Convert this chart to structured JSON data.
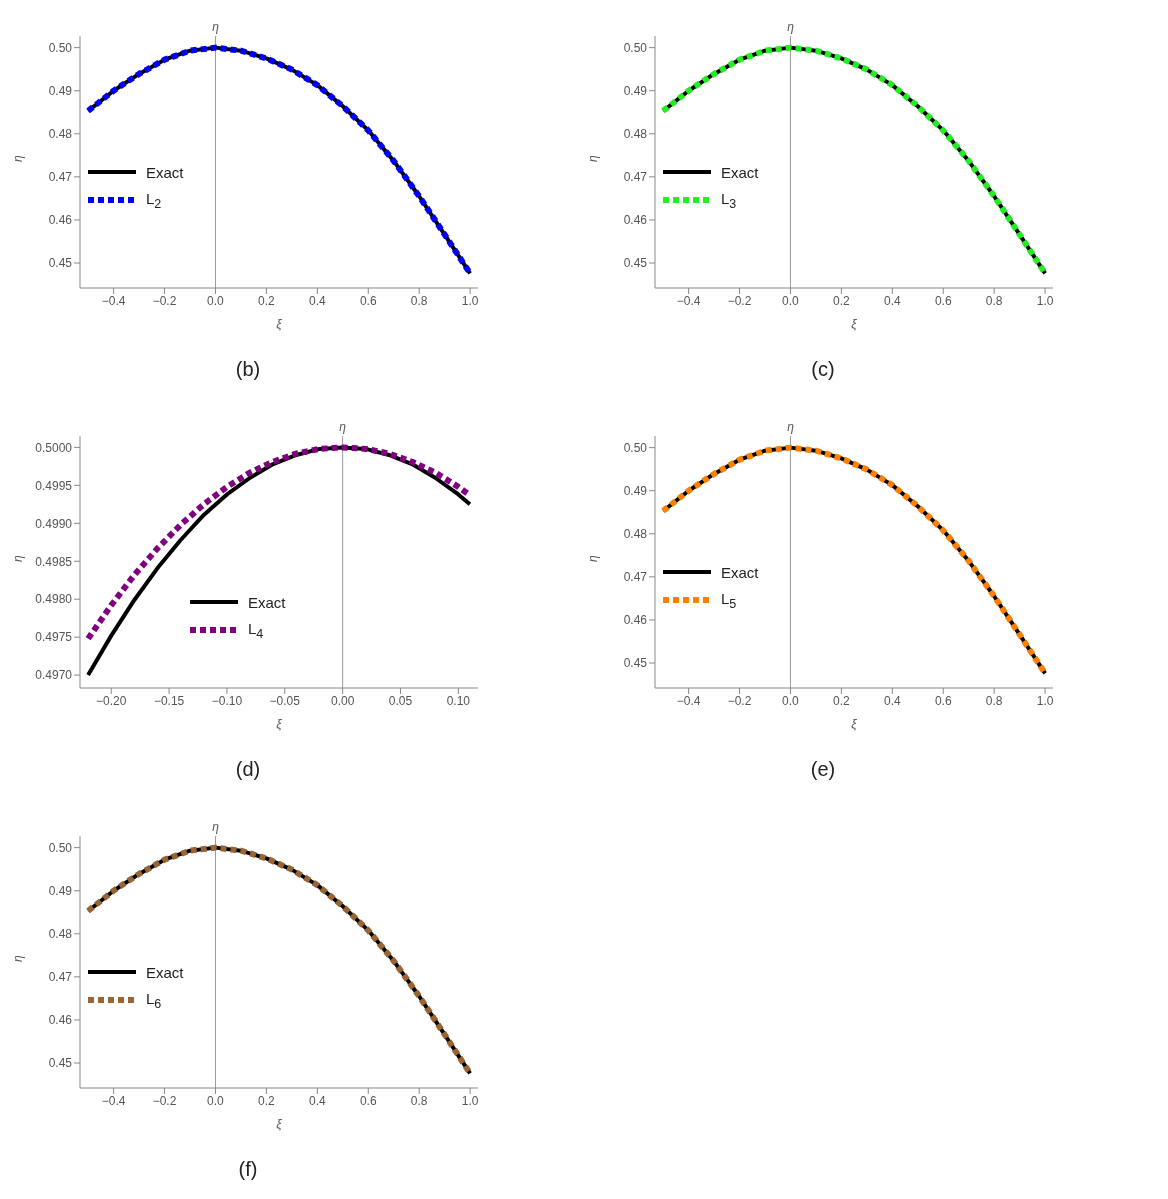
{
  "chart_data": [
    {
      "type": "line",
      "xlabel": "ξ",
      "ylabel": "η",
      "annotations": [
        "(b)"
      ],
      "legend": "left",
      "xlim": [
        -0.532,
        1.031
      ],
      "ylim": [
        0.4442,
        0.5027
      ],
      "xticks": [
        {
          "value": -0.4,
          "label": "−0.4"
        },
        {
          "value": -0.2,
          "label": "−0.2"
        },
        {
          "value": 0,
          "label": "0.0"
        },
        {
          "value": 0.2,
          "label": "0.2"
        },
        {
          "value": 0.4,
          "label": "0.4"
        },
        {
          "value": 0.6,
          "label": "0.6"
        },
        {
          "value": 0.8,
          "label": "0.8"
        },
        {
          "value": 1,
          "label": "1.0"
        }
      ],
      "yticks": [
        {
          "value": 0.45,
          "label": "0.45"
        },
        {
          "value": 0.46,
          "label": "0.46"
        },
        {
          "value": 0.47,
          "label": "0.47"
        },
        {
          "value": 0.48,
          "label": "0.48"
        },
        {
          "value": 0.49,
          "label": "0.49"
        },
        {
          "value": 0.5,
          "label": "0.50"
        }
      ],
      "ref_lines": [
        {
          "axis": "x",
          "value": 0,
          "label": "η",
          "color": "#999999"
        }
      ],
      "x": [
        -0.5,
        -0.4,
        -0.3,
        -0.2,
        -0.1,
        0,
        0.1,
        0.2,
        0.3,
        0.4,
        0.5,
        0.6,
        0.7,
        0.8,
        0.9,
        1.0
      ],
      "series": [
        {
          "name": "Exact",
          "color": "#000000",
          "line_style": "solid",
          "values": [
            0.4853,
            0.49,
            0.4939,
            0.4972,
            0.4993,
            0.5,
            0.4993,
            0.4975,
            0.4949,
            0.4913,
            0.4864,
            0.4808,
            0.4737,
            0.4655,
            0.4566,
            0.4476
          ]
        },
        {
          "name": "L$_{2}$",
          "color": "#0000ff",
          "line_style": "dashed",
          "values": [
            0.4853,
            0.49,
            0.4939,
            0.4972,
            0.4993,
            0.5,
            0.4993,
            0.4975,
            0.4949,
            0.4913,
            0.4864,
            0.4808,
            0.4737,
            0.4655,
            0.4566,
            0.4476
          ]
        }
      ]
    },
    {
      "type": "line",
      "xlabel": "ξ",
      "ylabel": "η",
      "annotations": [
        "(c)"
      ],
      "legend": "left",
      "xlim": [
        -0.532,
        1.031
      ],
      "ylim": [
        0.4442,
        0.5027
      ],
      "xticks": [
        {
          "value": -0.4,
          "label": "−0.4"
        },
        {
          "value": -0.2,
          "label": "−0.2"
        },
        {
          "value": 0,
          "label": "0.0"
        },
        {
          "value": 0.2,
          "label": "0.2"
        },
        {
          "value": 0.4,
          "label": "0.4"
        },
        {
          "value": 0.6,
          "label": "0.6"
        },
        {
          "value": 0.8,
          "label": "0.8"
        },
        {
          "value": 1,
          "label": "1.0"
        }
      ],
      "yticks": [
        {
          "value": 0.45,
          "label": "0.45"
        },
        {
          "value": 0.46,
          "label": "0.46"
        },
        {
          "value": 0.47,
          "label": "0.47"
        },
        {
          "value": 0.48,
          "label": "0.48"
        },
        {
          "value": 0.49,
          "label": "0.49"
        },
        {
          "value": 0.5,
          "label": "0.50"
        }
      ],
      "ref_lines": [
        {
          "axis": "x",
          "value": 0,
          "label": "η",
          "color": "#999999"
        }
      ],
      "x": [
        -0.5,
        -0.4,
        -0.3,
        -0.2,
        -0.1,
        0,
        0.1,
        0.2,
        0.3,
        0.4,
        0.5,
        0.6,
        0.7,
        0.8,
        0.9,
        1.0
      ],
      "series": [
        {
          "name": "Exact",
          "color": "#000000",
          "line_style": "solid",
          "values": [
            0.4853,
            0.49,
            0.4939,
            0.4972,
            0.4993,
            0.5,
            0.4993,
            0.4975,
            0.4949,
            0.4913,
            0.4864,
            0.4808,
            0.4737,
            0.4655,
            0.4566,
            0.4476
          ]
        },
        {
          "name": "L$_{3}$",
          "color": "#22ee22",
          "line_style": "dashed",
          "values": [
            0.4853,
            0.49,
            0.4939,
            0.4972,
            0.4993,
            0.5,
            0.4993,
            0.4975,
            0.4949,
            0.4913,
            0.4864,
            0.4808,
            0.4737,
            0.4655,
            0.4566,
            0.4476
          ]
        }
      ]
    },
    {
      "type": "line",
      "xlabel": "ξ",
      "ylabel": "η",
      "annotations": [
        "(d)"
      ],
      "legend": "center",
      "xlim": [
        -0.227,
        0.117
      ],
      "ylim": [
        0.49683,
        0.50015
      ],
      "xticks": [
        {
          "value": -0.2,
          "label": "−0.20"
        },
        {
          "value": -0.15,
          "label": "−0.15"
        },
        {
          "value": -0.1,
          "label": "−0.10"
        },
        {
          "value": -0.05,
          "label": "−0.05"
        },
        {
          "value": 0,
          "label": "0.00"
        },
        {
          "value": 0.05,
          "label": "0.05"
        },
        {
          "value": 0.1,
          "label": "0.10"
        }
      ],
      "yticks": [
        {
          "value": 0.497,
          "label": "0.4970"
        },
        {
          "value": 0.4975,
          "label": "0.4975"
        },
        {
          "value": 0.498,
          "label": "0.4980"
        },
        {
          "value": 0.4985,
          "label": "0.4985"
        },
        {
          "value": 0.499,
          "label": "0.4990"
        },
        {
          "value": 0.4995,
          "label": "0.4995"
        },
        {
          "value": 0.5,
          "label": "0.5000"
        }
      ],
      "ref_lines": [
        {
          "axis": "x",
          "value": 0,
          "label": "η",
          "color": "#999999"
        }
      ],
      "series": [
        {
          "name": "Exact",
          "color": "#000000",
          "line_style": "solid",
          "x": [
            -0.22,
            -0.2,
            -0.18,
            -0.16,
            -0.14,
            -0.12,
            -0.1,
            -0.08,
            -0.06,
            -0.04,
            -0.02,
            0,
            0.02,
            0.04,
            0.06,
            0.08,
            0.1,
            0.11
          ],
          "values": [
            0.497,
            0.49752,
            0.49799,
            0.49841,
            0.49878,
            0.49911,
            0.49938,
            0.4996,
            0.49978,
            0.4999,
            0.49998,
            0.5,
            0.49998,
            0.4999,
            0.49978,
            0.4996,
            0.49938,
            0.49925
          ]
        },
        {
          "name": "L$_{4}$",
          "color": "#800080",
          "line_style": "dashed",
          "x": [
            -0.22,
            -0.2,
            -0.18,
            -0.16,
            -0.14,
            -0.12,
            -0.1,
            -0.08,
            -0.06,
            -0.04,
            -0.02,
            0,
            0.02,
            0.04,
            0.06,
            0.08,
            0.1,
            0.11
          ],
          "values": [
            0.49748,
            0.49792,
            0.49832,
            0.49867,
            0.49898,
            0.49925,
            0.49948,
            0.49967,
            0.49981,
            0.49992,
            0.49998,
            0.5,
            0.49998,
            0.49992,
            0.49981,
            0.49967,
            0.49948,
            0.49937
          ]
        }
      ]
    },
    {
      "type": "line",
      "xlabel": "ξ",
      "ylabel": "η",
      "annotations": [
        "(e)"
      ],
      "legend": "left",
      "xlim": [
        -0.532,
        1.031
      ],
      "ylim": [
        0.4442,
        0.5027
      ],
      "xticks": [
        {
          "value": -0.4,
          "label": "−0.4"
        },
        {
          "value": -0.2,
          "label": "−0.2"
        },
        {
          "value": 0,
          "label": "0.0"
        },
        {
          "value": 0.2,
          "label": "0.2"
        },
        {
          "value": 0.4,
          "label": "0.4"
        },
        {
          "value": 0.6,
          "label": "0.6"
        },
        {
          "value": 0.8,
          "label": "0.8"
        },
        {
          "value": 1,
          "label": "1.0"
        }
      ],
      "yticks": [
        {
          "value": 0.45,
          "label": "0.45"
        },
        {
          "value": 0.46,
          "label": "0.46"
        },
        {
          "value": 0.47,
          "label": "0.47"
        },
        {
          "value": 0.48,
          "label": "0.48"
        },
        {
          "value": 0.49,
          "label": "0.49"
        },
        {
          "value": 0.5,
          "label": "0.50"
        }
      ],
      "ref_lines": [
        {
          "axis": "x",
          "value": 0,
          "label": "η",
          "color": "#999999"
        }
      ],
      "x": [
        -0.5,
        -0.4,
        -0.3,
        -0.2,
        -0.1,
        0,
        0.1,
        0.2,
        0.3,
        0.4,
        0.5,
        0.6,
        0.7,
        0.8,
        0.9,
        1.0
      ],
      "series": [
        {
          "name": "Exact",
          "color": "#000000",
          "line_style": "solid",
          "values": [
            0.4853,
            0.49,
            0.4939,
            0.4972,
            0.4993,
            0.5,
            0.4993,
            0.4975,
            0.4949,
            0.4913,
            0.4864,
            0.4808,
            0.4737,
            0.4655,
            0.4566,
            0.4476
          ]
        },
        {
          "name": "L$_{5}$",
          "color": "#ff8000",
          "line_style": "dashed",
          "values": [
            0.4853,
            0.49,
            0.4939,
            0.4972,
            0.4993,
            0.5,
            0.4993,
            0.4975,
            0.4949,
            0.4913,
            0.4864,
            0.4808,
            0.4737,
            0.4655,
            0.4566,
            0.4476
          ]
        }
      ]
    },
    {
      "type": "line",
      "xlabel": "ξ",
      "ylabel": "η",
      "annotations": [
        "(f)"
      ],
      "legend": "left",
      "xlim": [
        -0.532,
        1.031
      ],
      "ylim": [
        0.4442,
        0.5027
      ],
      "xticks": [
        {
          "value": -0.4,
          "label": "−0.4"
        },
        {
          "value": -0.2,
          "label": "−0.2"
        },
        {
          "value": 0,
          "label": "0.0"
        },
        {
          "value": 0.2,
          "label": "0.2"
        },
        {
          "value": 0.4,
          "label": "0.4"
        },
        {
          "value": 0.6,
          "label": "0.6"
        },
        {
          "value": 0.8,
          "label": "0.8"
        },
        {
          "value": 1,
          "label": "1.0"
        }
      ],
      "yticks": [
        {
          "value": 0.45,
          "label": "0.45"
        },
        {
          "value": 0.46,
          "label": "0.46"
        },
        {
          "value": 0.47,
          "label": "0.47"
        },
        {
          "value": 0.48,
          "label": "0.48"
        },
        {
          "value": 0.49,
          "label": "0.49"
        },
        {
          "value": 0.5,
          "label": "0.50"
        }
      ],
      "ref_lines": [
        {
          "axis": "x",
          "value": 0,
          "label": "η",
          "color": "#999999"
        }
      ],
      "x": [
        -0.5,
        -0.4,
        -0.3,
        -0.2,
        -0.1,
        0,
        0.1,
        0.2,
        0.3,
        0.4,
        0.5,
        0.6,
        0.7,
        0.8,
        0.9,
        1.0
      ],
      "series": [
        {
          "name": "Exact",
          "color": "#000000",
          "line_style": "solid",
          "values": [
            0.4853,
            0.49,
            0.4939,
            0.4972,
            0.4993,
            0.5,
            0.4993,
            0.4975,
            0.4949,
            0.4913,
            0.4864,
            0.4808,
            0.4737,
            0.4655,
            0.4566,
            0.4476
          ]
        },
        {
          "name": "L$_{6}$",
          "color": "#996633",
          "line_style": "dashed",
          "values": [
            0.4853,
            0.49,
            0.4939,
            0.4972,
            0.4993,
            0.5,
            0.4993,
            0.4975,
            0.4949,
            0.4913,
            0.4864,
            0.4808,
            0.4737,
            0.4655,
            0.4566,
            0.4476
          ]
        }
      ]
    }
  ]
}
